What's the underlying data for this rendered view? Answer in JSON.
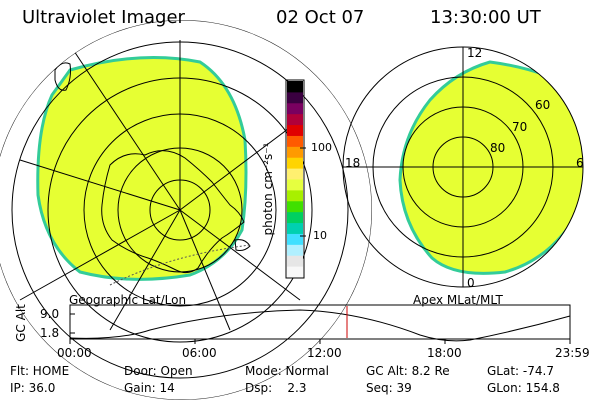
{
  "header": {
    "instrument": "Ultraviolet Imager",
    "date": "02 Oct 07",
    "time": "13:30:00 UT"
  },
  "left_panel": {
    "caption": "Geographic Lat/Lon"
  },
  "right_panel": {
    "caption": "Apex MLat/MLT",
    "mlt_labels": {
      "top": "12",
      "left": "18",
      "right": "6",
      "bottom": "0"
    },
    "lat_labels": [
      "60",
      "70",
      "80"
    ]
  },
  "colorbar": {
    "unit_label": "photon cm⁻²s⁻¹",
    "ticks": [
      "100",
      "10"
    ],
    "colors": [
      "#000000",
      "#3a0040",
      "#7a0060",
      "#b0003a",
      "#e00000",
      "#ff5a00",
      "#ff9a00",
      "#ffd400",
      "#fff070",
      "#e6ff40",
      "#a8f000",
      "#40e000",
      "#00d060",
      "#00d0b0",
      "#40e0ff",
      "#b0f0ff",
      "#e6e6e6",
      "#f8f8f8"
    ]
  },
  "timeline": {
    "axis_label": "GC Alt",
    "y_ticks": [
      "9.0",
      "1.8"
    ],
    "x_ticks": [
      "00:00",
      "06:00",
      "12:00",
      "18:00",
      "23:59"
    ]
  },
  "info": {
    "flt": "Flt: HOME",
    "ip": "IP: 36.0",
    "door": "Door: Open",
    "gain": "Gain: 14",
    "mode": "Mode: Normal",
    "dsp": "Dsp:    2.3",
    "gcalt": "GC Alt: 8.2 Re",
    "seq": "Seq: 39",
    "glat": "GLat: -74.7",
    "glon": "GLon: 154.8"
  },
  "colors": {
    "image_fill": "#e6ff33",
    "image_edge": "#33cc99",
    "marker_line": "#cc0000"
  }
}
